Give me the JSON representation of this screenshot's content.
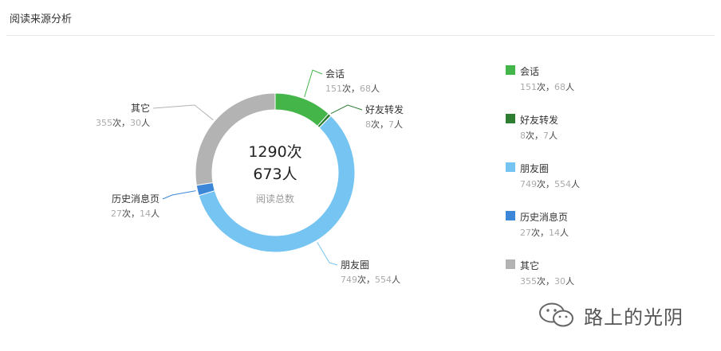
{
  "header": {
    "title": "阅读来源分析"
  },
  "chart_data": {
    "type": "pie",
    "center": {
      "total_times": "1290次",
      "total_people": "673人",
      "caption": "阅读总数"
    },
    "slices": [
      {
        "name": "会话",
        "times": 151,
        "people": 68,
        "color": "#44b549"
      },
      {
        "name": "好友转发",
        "times": 8,
        "people": 7,
        "color": "#2d7d33"
      },
      {
        "name": "朋友圈",
        "times": 749,
        "people": 554,
        "color": "#75c4f1"
      },
      {
        "name": "历史消息页",
        "times": 27,
        "people": 14,
        "color": "#3d87d9"
      },
      {
        "name": "其它",
        "times": 355,
        "people": 30,
        "color": "#b3b3b3"
      }
    ]
  },
  "legend": [
    {
      "name": "会话",
      "times": "151",
      "times_unit": "次，",
      "people": "68",
      "people_unit": "人"
    },
    {
      "name": "好友转发",
      "times": "8",
      "times_unit": "次，",
      "people": "7",
      "people_unit": "人"
    },
    {
      "name": "朋友圈",
      "times": "749",
      "times_unit": "次，",
      "people": "554",
      "people_unit": "人"
    },
    {
      "name": "历史消息页",
      "times": "27",
      "times_unit": "次，",
      "people": "14",
      "people_unit": "人"
    },
    {
      "name": "其它",
      "times": "355",
      "times_unit": "次，",
      "people": "30",
      "people_unit": "人"
    }
  ],
  "watermark": {
    "text": "路上的光阴",
    "icon": "wechat-icon"
  }
}
